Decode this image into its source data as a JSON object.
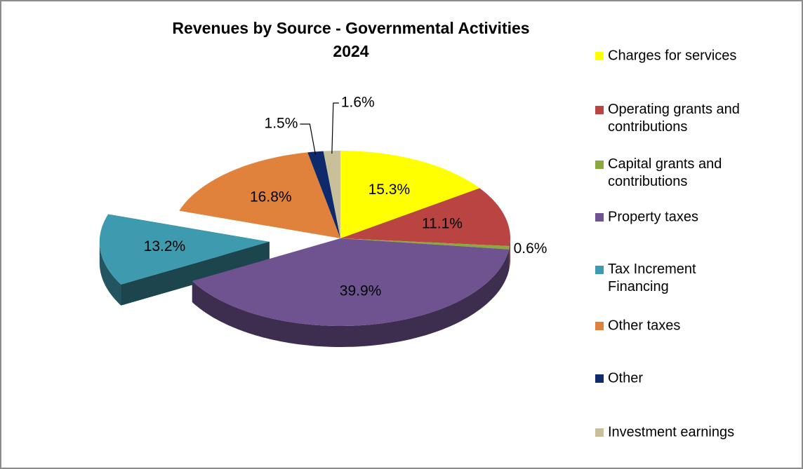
{
  "chart_data": {
    "type": "pie3d",
    "title": "Revenues by Source - Governmental Activities",
    "subtitle": "2024",
    "categories": [
      "Charges for services",
      "Operating grants and contributions",
      "Capital grants and contributions",
      "Property taxes",
      "Tax Increment Financing",
      "Other taxes",
      "Other",
      "Investment earnings"
    ],
    "values": [
      15.3,
      11.1,
      0.6,
      39.9,
      13.2,
      16.8,
      1.5,
      1.6
    ],
    "value_labels": [
      "15.3%",
      "11.1%",
      "0.6%",
      "39.9%",
      "13.2%",
      "16.8%",
      "1.5%",
      "1.6%"
    ],
    "colors": [
      "#ffff00",
      "#b94441",
      "#8aa83e",
      "#6f5290",
      "#3e9aae",
      "#e0823c",
      "#0f2a6b",
      "#c9c09a"
    ],
    "exploded": [
      "Tax Increment Financing"
    ],
    "legend": "right"
  }
}
